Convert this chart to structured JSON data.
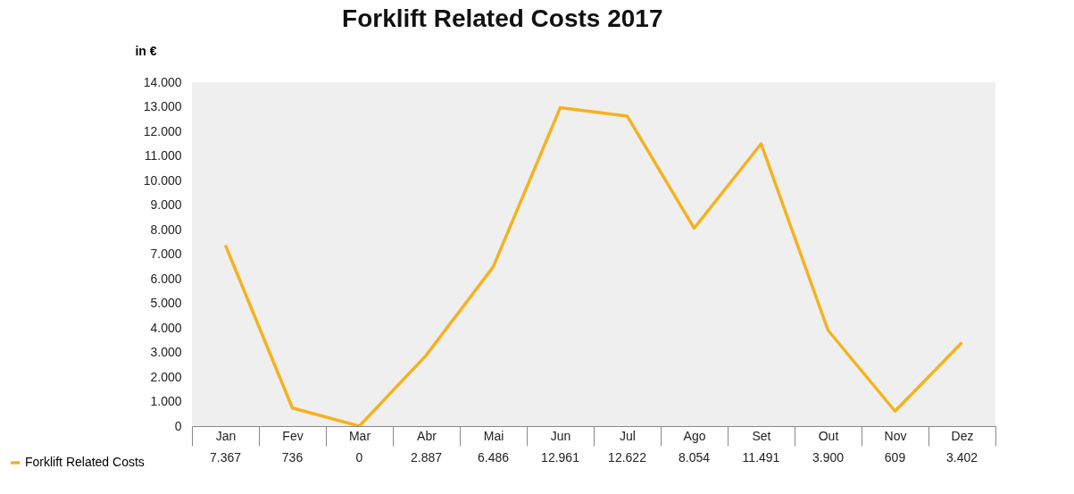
{
  "chart_data": {
    "type": "line",
    "title": "Forklift Related Costs 2017",
    "ylabel": "in €",
    "categories": [
      "Jan",
      "Fev",
      "Mar",
      "Abr",
      "Mai",
      "Jun",
      "Jul",
      "Ago",
      "Set",
      "Out",
      "Nov",
      "Dez"
    ],
    "series": [
      {
        "name": "Forklift Related Costs",
        "color": "#f5b21e",
        "values": [
          7367,
          736,
          0,
          2887,
          6486,
          12961,
          12622,
          8054,
          11491,
          3900,
          609,
          3402
        ],
        "value_labels": [
          "7.367",
          "736",
          "0",
          "2.887",
          "6.486",
          "12.961",
          "12.622",
          "8.054",
          "11.491",
          "3.900",
          "609",
          "3.402"
        ]
      }
    ],
    "ylim": [
      0,
      14000
    ],
    "yticks": [
      0,
      {
        "value": 1000,
        "label": "1.000"
      },
      {
        "value": 2000,
        "label": "2.000"
      },
      {
        "value": 3000,
        "label": "3.000"
      },
      {
        "value": 4000,
        "label": "4.000"
      },
      {
        "value": 5000,
        "label": "5.000"
      },
      {
        "value": 6000,
        "label": "6.000"
      },
      {
        "value": 7000,
        "label": "7.000"
      },
      {
        "value": 8000,
        "label": "8.000"
      },
      {
        "value": 9000,
        "label": "9.000"
      },
      {
        "value": 10000,
        "label": "10.000"
      },
      {
        "value": 11000,
        "label": "11.000"
      },
      {
        "value": 12000,
        "label": "12.000"
      },
      {
        "value": 13000,
        "label": "13.000"
      },
      {
        "value": 14000,
        "label": "14.000"
      }
    ],
    "legend": "bottom left",
    "marker": "none",
    "line_style": "solid"
  }
}
